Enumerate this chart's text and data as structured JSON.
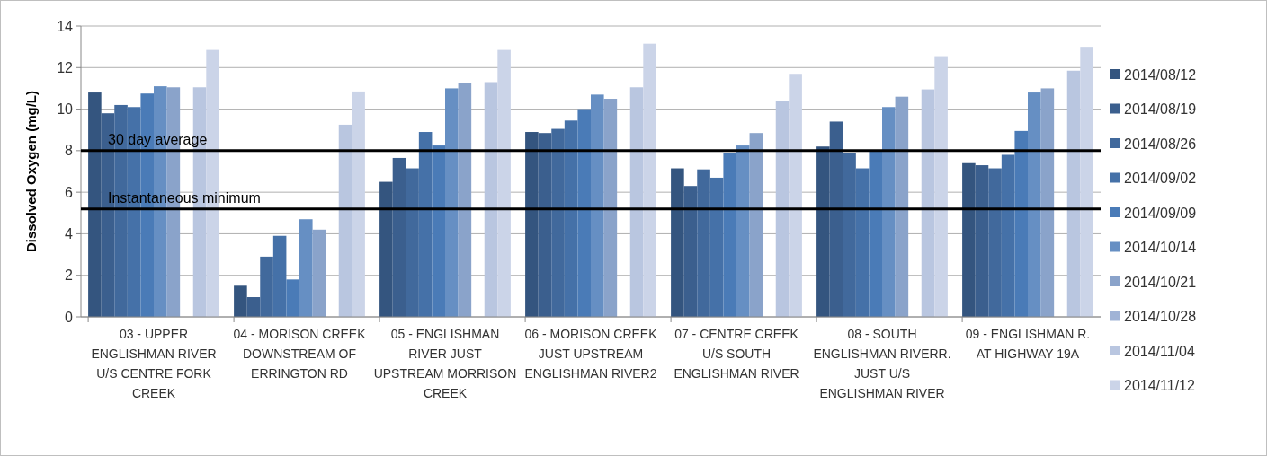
{
  "chart_data": {
    "type": "bar",
    "ylabel": "Dissolved Oxygen (mg/L)",
    "categories": [
      "03 - UPPER ENGLISHMAN RIVER U/S CENTRE FORK CREEK",
      "04 - MORISON CREEK DOWNSTREAM OF ERRINGTON RD",
      "05 - ENGLISHMAN RIVER JUST UPSTREAM MORRISON CREEK",
      "06 - MORISON CREEK JUST UPSTREAM ENGLISHMAN RIVER2",
      "07 - CENTRE CREEK U/S SOUTH ENGLISHMAN RIVER",
      "08 - SOUTH ENGLISHMAN RIVERR. JUST U/S ENGLISHMAN RIVER",
      "09 - ENGLISHMAN R. AT HIGHWAY 19A"
    ],
    "series": [
      {
        "name": "2014/08/12",
        "color": "#34557f",
        "values": [
          10.8,
          1.5,
          6.5,
          8.9,
          7.15,
          8.2,
          7.4
        ]
      },
      {
        "name": "2014/08/19",
        "color": "#3b5f8e",
        "values": [
          9.8,
          0.95,
          7.65,
          8.85,
          6.3,
          9.4,
          7.3
        ]
      },
      {
        "name": "2014/08/26",
        "color": "#41699c",
        "values": [
          10.2,
          2.9,
          7.15,
          9.05,
          7.1,
          7.9,
          7.15
        ]
      },
      {
        "name": "2014/09/02",
        "color": "#4571a8",
        "values": [
          10.1,
          3.9,
          8.9,
          9.45,
          6.7,
          7.15,
          7.8
        ]
      },
      {
        "name": "2014/09/09",
        "color": "#4a7bb7",
        "values": [
          10.75,
          1.8,
          8.25,
          10.0,
          7.9,
          8.0,
          8.95
        ]
      },
      {
        "name": "2014/10/14",
        "color": "#668fc3",
        "values": [
          11.1,
          4.7,
          11.0,
          10.7,
          8.25,
          10.1,
          10.8
        ]
      },
      {
        "name": "2014/10/21",
        "color": "#8aa3ca",
        "values": [
          11.05,
          4.2,
          11.25,
          10.5,
          8.85,
          10.6,
          11.0
        ]
      },
      {
        "name": "2014/10/28",
        "color": "#a0b3d6",
        "values": [
          null,
          null,
          null,
          null,
          null,
          null,
          null
        ]
      },
      {
        "name": "2014/11/04",
        "color": "#b9c6e0",
        "values": [
          11.05,
          9.25,
          11.3,
          11.05,
          10.4,
          10.95,
          11.85
        ]
      },
      {
        "name": "2014/11/12",
        "color": "#cbd4e8",
        "values": [
          12.85,
          10.85,
          12.85,
          13.15,
          11.7,
          12.55,
          13.0
        ]
      }
    ],
    "ylim": [
      0,
      14
    ],
    "yticks": [
      0,
      2,
      4,
      6,
      8,
      10,
      12,
      14
    ],
    "grid": "y",
    "legend": "right",
    "ref_lines": [
      {
        "axis": "y",
        "value": 8,
        "label": "30 day average",
        "color": "#000000"
      },
      {
        "axis": "y",
        "value": 5.2,
        "label": "Instantaneous minimum",
        "color": "#000000"
      }
    ]
  }
}
